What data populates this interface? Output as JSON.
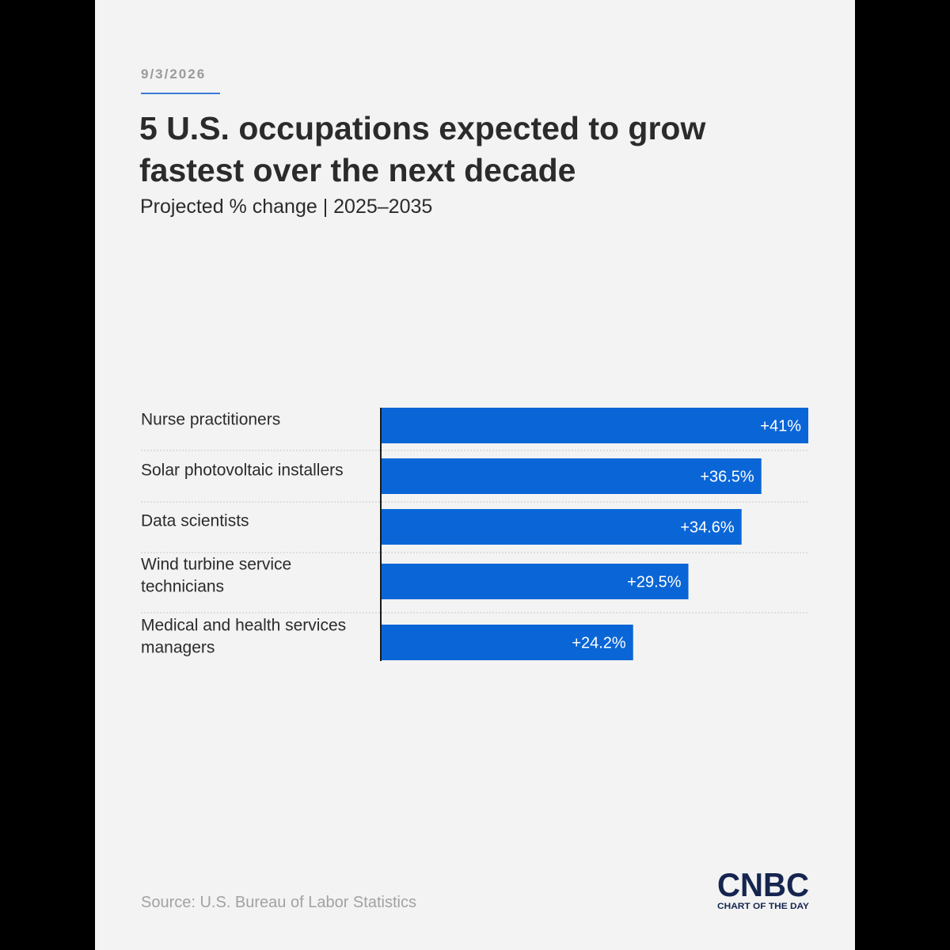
{
  "date": "9/3/2026",
  "title": "5 U.S. occupations expected to grow fastest over the next decade",
  "subtitle": "Projected % change | 2025–2035",
  "source": "Source: U.S. Bureau of Labor Statistics",
  "logo": {
    "wordmark": "CNBC",
    "tagline": "CHART OF THE DAY"
  },
  "colors": {
    "bar": "#0a66d6",
    "bar_label": "#ffffff",
    "background": "#f3f3f3",
    "logo": "#15254f"
  },
  "chart_data": {
    "type": "bar",
    "orientation": "horizontal",
    "categories": [
      [
        "Nurse practitioners"
      ],
      [
        "Solar photovoltaic installers"
      ],
      [
        "Data scientists"
      ],
      [
        "Wind turbine service",
        "technicians"
      ],
      [
        "Medical and health services",
        "managers"
      ]
    ],
    "values": [
      41,
      36.5,
      34.6,
      29.5,
      24.2
    ],
    "value_labels": [
      "+41%",
      "+36.5%",
      "+34.6%",
      "+29.5%",
      "+24.2%"
    ],
    "xlim": [
      0,
      41
    ],
    "grid": false,
    "legend": "none"
  }
}
